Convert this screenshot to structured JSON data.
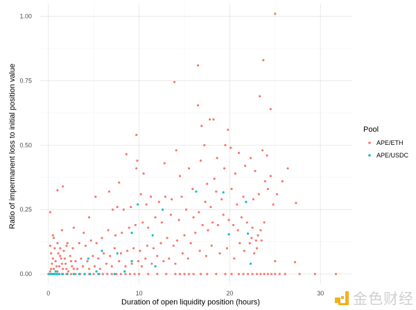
{
  "chart_data": {
    "type": "scatter",
    "title": "",
    "xlabel": "Duration of open liquidity position (hours)",
    "ylabel": "Ratio of impermanent loss to initial position value",
    "xlim": [
      -0.9,
      33.5
    ],
    "ylim": [
      -0.04,
      1.05
    ],
    "xticks": [
      0,
      10,
      20,
      30
    ],
    "xtick_labels": [
      "0",
      "10",
      "20",
      "30"
    ],
    "yticks": [
      0,
      0.25,
      0.5,
      0.75,
      1.0
    ],
    "ytick_labels": [
      "0.00",
      "0.25",
      "0.50",
      "0.75",
      "1.00"
    ],
    "grid": true,
    "legend": {
      "title": "Pool",
      "placement": "right"
    },
    "series": [
      {
        "name": "APE/ETH",
        "color": "#F8766D",
        "points": [
          [
            25.0,
            1.01
          ],
          [
            16.5,
            0.81
          ],
          [
            23.7,
            0.83
          ],
          [
            13.9,
            0.745
          ],
          [
            23.3,
            0.69
          ],
          [
            16.5,
            0.655
          ],
          [
            24.5,
            0.64
          ],
          [
            17.8,
            0.6
          ],
          [
            18.2,
            0.6
          ],
          [
            16.9,
            0.575
          ],
          [
            9.7,
            0.54
          ],
          [
            19.8,
            0.56
          ],
          [
            14.1,
            0.48
          ],
          [
            8.6,
            0.465
          ],
          [
            12.8,
            0.43
          ],
          [
            9.8,
            0.44
          ],
          [
            9.7,
            0.41
          ],
          [
            14.5,
            0.38
          ],
          [
            10.5,
            0.39
          ],
          [
            6.7,
            0.32
          ],
          [
            7.8,
            0.355
          ],
          [
            1.6,
            0.34
          ],
          [
            1.0,
            0.325
          ],
          [
            0.2,
            0.24
          ],
          [
            5.2,
            0.3
          ],
          [
            4.5,
            0.22
          ],
          [
            3.9,
            0.16
          ],
          [
            2.8,
            0.18
          ],
          [
            1.5,
            0.17
          ],
          [
            17.2,
            0.5
          ],
          [
            18.6,
            0.45
          ],
          [
            19.5,
            0.5
          ],
          [
            20.1,
            0.49
          ],
          [
            21.0,
            0.47
          ],
          [
            22.3,
            0.45
          ],
          [
            23.6,
            0.48
          ],
          [
            24.1,
            0.46
          ],
          [
            24.5,
            0.38
          ],
          [
            23.9,
            0.36
          ],
          [
            22.8,
            0.4
          ],
          [
            21.7,
            0.42
          ],
          [
            20.6,
            0.39
          ],
          [
            19.4,
            0.41
          ],
          [
            18.3,
            0.37
          ],
          [
            17.5,
            0.35
          ],
          [
            16.8,
            0.44
          ],
          [
            15.5,
            0.41
          ],
          [
            15.9,
            0.33
          ],
          [
            14.7,
            0.3
          ],
          [
            13.6,
            0.29
          ],
          [
            12.9,
            0.3
          ],
          [
            12.2,
            0.28
          ],
          [
            11.3,
            0.3
          ],
          [
            10.8,
            0.27
          ],
          [
            10.2,
            0.31
          ],
          [
            9.1,
            0.26
          ],
          [
            8.3,
            0.25
          ],
          [
            7.6,
            0.26
          ],
          [
            7.1,
            0.25
          ],
          [
            26.4,
            0.41
          ],
          [
            27.3,
            0.276
          ],
          [
            25.8,
            0.36
          ],
          [
            25.2,
            0.31
          ],
          [
            24.8,
            0.27
          ],
          [
            24.2,
            0.33
          ],
          [
            23.2,
            0.31
          ],
          [
            22.6,
            0.29
          ],
          [
            21.5,
            0.3
          ],
          [
            20.8,
            0.27
          ],
          [
            20.2,
            0.33
          ],
          [
            19.1,
            0.29
          ],
          [
            18.5,
            0.32
          ],
          [
            17.9,
            0.26
          ],
          [
            17.3,
            0.28
          ],
          [
            16.6,
            0.24
          ],
          [
            16.0,
            0.22
          ],
          [
            15.2,
            0.25
          ],
          [
            14.4,
            0.21
          ],
          [
            13.5,
            0.23
          ],
          [
            12.5,
            0.2
          ],
          [
            11.8,
            0.22
          ],
          [
            11.0,
            0.18
          ],
          [
            10.4,
            0.2
          ],
          [
            9.6,
            0.19
          ],
          [
            8.9,
            0.18
          ],
          [
            8.1,
            0.16
          ],
          [
            7.4,
            0.15
          ],
          [
            6.6,
            0.17
          ],
          [
            5.9,
            0.14
          ],
          [
            5.3,
            0.12
          ],
          [
            4.7,
            0.13
          ],
          [
            4.1,
            0.11
          ],
          [
            3.4,
            0.12
          ],
          [
            2.7,
            0.1
          ],
          [
            2.1,
            0.12
          ],
          [
            1.3,
            0.1
          ],
          [
            0.6,
            0.14
          ],
          [
            23.8,
            0.2
          ],
          [
            23.4,
            0.17
          ],
          [
            23.1,
            0.15
          ],
          [
            22.9,
            0.13
          ],
          [
            22.5,
            0.18
          ],
          [
            22.2,
            0.12
          ],
          [
            21.9,
            0.2
          ],
          [
            21.3,
            0.22
          ],
          [
            20.9,
            0.17
          ],
          [
            20.4,
            0.19
          ],
          [
            19.9,
            0.21
          ],
          [
            19.3,
            0.23
          ],
          [
            18.7,
            0.19
          ],
          [
            18.1,
            0.2
          ],
          [
            17.6,
            0.17
          ],
          [
            17.0,
            0.19
          ],
          [
            16.2,
            0.16
          ],
          [
            15.7,
            0.12
          ],
          [
            15.0,
            0.15
          ],
          [
            14.2,
            0.13
          ],
          [
            13.8,
            0.11
          ],
          [
            13.1,
            0.14
          ],
          [
            12.4,
            0.12
          ],
          [
            11.6,
            0.1
          ],
          [
            10.9,
            0.11
          ],
          [
            10.1,
            0.09
          ],
          [
            9.4,
            0.1
          ],
          [
            8.7,
            0.09
          ],
          [
            8.0,
            0.08
          ],
          [
            7.3,
            0.1
          ],
          [
            6.8,
            0.07
          ],
          [
            6.1,
            0.08
          ],
          [
            5.5,
            0.06
          ],
          [
            4.9,
            0.07
          ],
          [
            4.3,
            0.05
          ],
          [
            3.6,
            0.06
          ],
          [
            3.0,
            0.05
          ],
          [
            2.4,
            0.07
          ],
          [
            1.8,
            0.06
          ],
          [
            1.1,
            0.08
          ],
          [
            0.5,
            0.06
          ],
          [
            23.5,
            0.13
          ],
          [
            23.0,
            0.1
          ],
          [
            22.7,
            0.08
          ],
          [
            22.4,
            0.14
          ],
          [
            21.6,
            0.09
          ],
          [
            21.1,
            0.12
          ],
          [
            20.5,
            0.06
          ],
          [
            19.7,
            0.1
          ],
          [
            18.9,
            0.08
          ],
          [
            18.0,
            0.11
          ],
          [
            17.4,
            0.07
          ],
          [
            16.7,
            0.09
          ],
          [
            15.4,
            0.06
          ],
          [
            14.8,
            0.08
          ],
          [
            14.0,
            0.04
          ],
          [
            13.3,
            0.06
          ],
          [
            12.7,
            0.05
          ],
          [
            12.0,
            0.07
          ],
          [
            11.4,
            0.04
          ],
          [
            10.7,
            0.06
          ],
          [
            10.3,
            0.03
          ],
          [
            9.9,
            0.05
          ],
          [
            9.2,
            0.04
          ],
          [
            8.5,
            0.03
          ],
          [
            7.8,
            0.05
          ],
          [
            7.0,
            0.03
          ],
          [
            6.4,
            0.04
          ],
          [
            5.7,
            0.02
          ],
          [
            5.1,
            0.03
          ],
          [
            4.5,
            0.02
          ],
          [
            3.8,
            0.03
          ],
          [
            3.2,
            0.02
          ],
          [
            2.6,
            0.03
          ],
          [
            2.0,
            0.02
          ],
          [
            1.5,
            0.04
          ],
          [
            0.9,
            0.03
          ],
          [
            0.3,
            0.02
          ],
          [
            0.2,
            0.01
          ],
          [
            0.4,
            0.04
          ],
          [
            0.6,
            0.02
          ],
          [
            0.8,
            0.05
          ],
          [
            1.0,
            0.01
          ],
          [
            1.2,
            0.03
          ],
          [
            1.4,
            0.06
          ],
          [
            1.6,
            0.02
          ],
          [
            1.9,
            0.04
          ],
          [
            2.2,
            0.01
          ],
          [
            2.5,
            0.05
          ],
          [
            2.8,
            0.02
          ],
          [
            0.3,
            0.08
          ],
          [
            0.7,
            0.1
          ],
          [
            1.0,
            0.12
          ],
          [
            1.3,
            0.07
          ],
          [
            1.7,
            0.09
          ],
          [
            2.0,
            0.11
          ],
          [
            0.5,
            0.15
          ],
          [
            0.2,
            0.11
          ],
          [
            0.0,
            0.0
          ],
          [
            0.5,
            0.0
          ],
          [
            1.0,
            0.0
          ],
          [
            1.5,
            0.0
          ],
          [
            2.0,
            0.0
          ],
          [
            2.5,
            0.0
          ],
          [
            3.0,
            0.0
          ],
          [
            3.5,
            0.0
          ],
          [
            4.0,
            0.0
          ],
          [
            4.5,
            0.0
          ],
          [
            5.0,
            0.0
          ],
          [
            5.5,
            0.0
          ],
          [
            6.0,
            0.0
          ],
          [
            6.5,
            0.0
          ],
          [
            7.0,
            0.0
          ],
          [
            7.5,
            0.0
          ],
          [
            8.0,
            0.0
          ],
          [
            8.5,
            0.0
          ],
          [
            9.0,
            0.0
          ],
          [
            9.5,
            0.0
          ],
          [
            10.0,
            0.0
          ],
          [
            11.0,
            0.0
          ],
          [
            12.0,
            0.0
          ],
          [
            13.0,
            0.0
          ],
          [
            14.0,
            0.0
          ],
          [
            14.5,
            0.0
          ],
          [
            15.0,
            0.0
          ],
          [
            15.5,
            0.0
          ],
          [
            16.0,
            0.0
          ],
          [
            16.8,
            0.0
          ],
          [
            17.5,
            0.0
          ],
          [
            18.5,
            0.0
          ],
          [
            19.5,
            0.0
          ],
          [
            20.2,
            0.0
          ],
          [
            21.0,
            0.0
          ],
          [
            21.5,
            0.0
          ],
          [
            22.0,
            0.0
          ],
          [
            22.5,
            0.0
          ],
          [
            23.0,
            0.0
          ],
          [
            23.4,
            0.0
          ],
          [
            23.8,
            0.0
          ],
          [
            24.2,
            0.0
          ],
          [
            24.6,
            0.0
          ],
          [
            25.0,
            0.0
          ],
          [
            25.5,
            0.0
          ],
          [
            26.1,
            0.0
          ],
          [
            27.7,
            0.0
          ],
          [
            29.4,
            0.0
          ],
          [
            31.7,
            0.0
          ],
          [
            25.0,
            0.05
          ],
          [
            27.2,
            0.046
          ]
        ]
      },
      {
        "name": "APE/USDC",
        "color": "#00BFC4",
        "points": [
          [
            9.85,
            0.27
          ],
          [
            12.6,
            0.25
          ],
          [
            16.3,
            0.32
          ],
          [
            19.3,
            0.317
          ],
          [
            21.8,
            0.28
          ],
          [
            19.9,
            0.154
          ],
          [
            22.0,
            0.157
          ],
          [
            22.3,
            0.04
          ],
          [
            9.2,
            0.16
          ],
          [
            11.5,
            0.15
          ],
          [
            5.9,
            0.09
          ],
          [
            7.6,
            0.08
          ],
          [
            4.4,
            0.06
          ],
          [
            9.2,
            0.05
          ],
          [
            11.8,
            0.03
          ],
          [
            5.3,
            0.01
          ],
          [
            8.4,
            0.01
          ],
          [
            0.1,
            0.0
          ],
          [
            0.3,
            0.0
          ],
          [
            0.5,
            0.0
          ],
          [
            0.7,
            0.0
          ],
          [
            0.9,
            0.0
          ],
          [
            1.2,
            0.0
          ],
          [
            1.6,
            0.0
          ],
          [
            2.1,
            0.0
          ],
          [
            2.8,
            0.0
          ],
          [
            3.4,
            0.0
          ],
          [
            4.0,
            0.0
          ],
          [
            4.6,
            0.0
          ],
          [
            5.6,
            0.0
          ],
          [
            7.3,
            0.0
          ],
          [
            0.8,
            0.01
          ]
        ]
      }
    ]
  },
  "watermark": {
    "text": "金色财经"
  }
}
